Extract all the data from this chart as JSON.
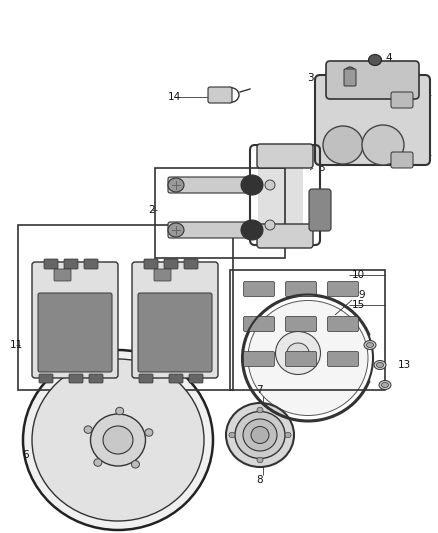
{
  "background_color": "#ffffff",
  "fig_width": 4.38,
  "fig_height": 5.33,
  "dpi": 100,
  "line_color": "#333333",
  "text_color": "#111111",
  "label_fontsize": 7.5
}
